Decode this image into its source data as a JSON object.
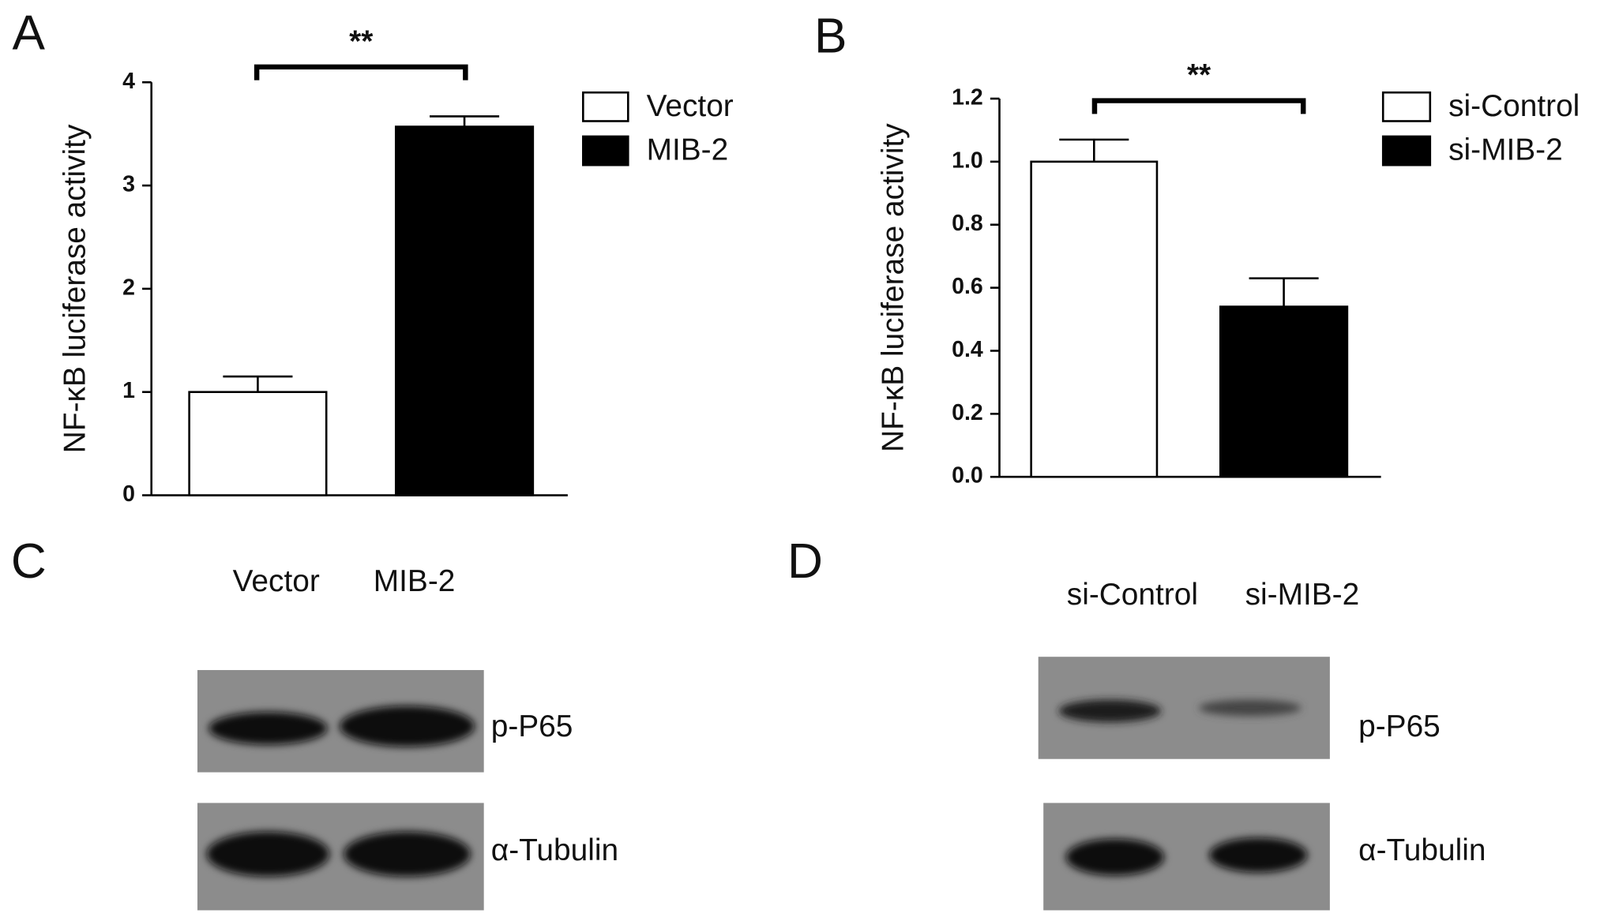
{
  "chart_data": [
    {
      "type": "bar",
      "panel": "A",
      "y_label": "NF-κB luciferase activity",
      "series": [
        {
          "name": "Vector",
          "color": "#ffffff",
          "values": [
            1.0
          ],
          "errors": [
            0.15
          ]
        },
        {
          "name": "MIB-2",
          "color": "#000000",
          "values": [
            3.57
          ],
          "errors": [
            0.1
          ]
        }
      ],
      "significance": "**",
      "ylim": [
        0,
        4
      ],
      "yticks": [
        0,
        1,
        2,
        3,
        4
      ]
    },
    {
      "type": "bar",
      "panel": "B",
      "y_label": "NF-κB luciferase activity",
      "series": [
        {
          "name": "si-Control",
          "color": "#ffffff",
          "values": [
            1.0
          ],
          "errors": [
            0.07
          ]
        },
        {
          "name": "si-MIB-2",
          "color": "#000000",
          "values": [
            0.54
          ],
          "errors": [
            0.09
          ]
        }
      ],
      "significance": "**",
      "ylim": [
        0,
        1.2
      ],
      "yticks": [
        {
          "value": 0,
          "label": "0.0"
        },
        0.2,
        0.4,
        0.6,
        0.8,
        {
          "value": 1,
          "label": "1.0"
        },
        1.2
      ]
    }
  ],
  "blots": [
    {
      "panel": "C",
      "lanes": [
        "Vector",
        "MIB-2"
      ],
      "bands": [
        "p-P65",
        "α-Tubulin"
      ]
    },
    {
      "panel": "D",
      "lanes": [
        "si-Control",
        "si-MIB-2"
      ],
      "bands": [
        "p-P65",
        "α-Tubulin"
      ]
    }
  ]
}
